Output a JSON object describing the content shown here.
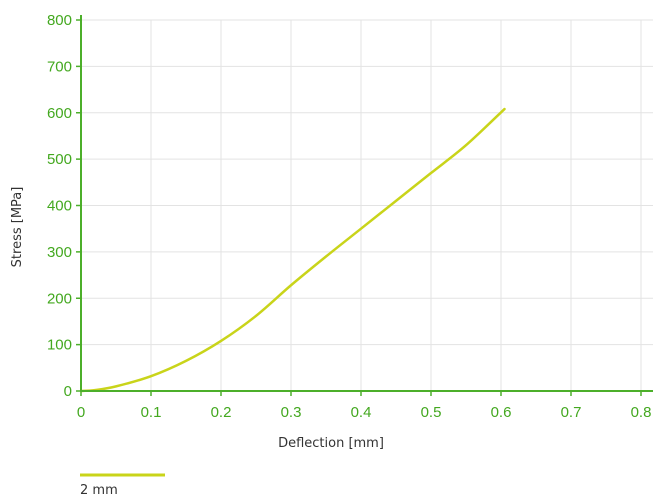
{
  "chart_data": {
    "type": "line",
    "title": "",
    "xlabel": "Deflection [mm]",
    "ylabel": "Stress [MPa]",
    "xlim": [
      0,
      0.8
    ],
    "ylim": [
      0,
      800
    ],
    "x_ticks": [
      "0",
      "0.1",
      "0.2",
      "0.3",
      "0.4",
      "0.5",
      "0.6",
      "0.7",
      "0.8"
    ],
    "y_ticks": [
      "0",
      "100",
      "200",
      "300",
      "400",
      "500",
      "600",
      "700",
      "800"
    ],
    "grid": true,
    "legend_position": "bottom-left",
    "series": [
      {
        "name": "2 mm",
        "color": "#c9d41a",
        "points": [
          [
            0.0,
            0
          ],
          [
            0.02,
            2
          ],
          [
            0.05,
            10
          ],
          [
            0.1,
            32
          ],
          [
            0.15,
            65
          ],
          [
            0.2,
            108
          ],
          [
            0.25,
            162
          ],
          [
            0.3,
            228
          ],
          [
            0.35,
            290
          ],
          [
            0.4,
            350
          ],
          [
            0.45,
            410
          ],
          [
            0.5,
            470
          ],
          [
            0.55,
            530
          ],
          [
            0.605,
            608
          ]
        ]
      }
    ]
  },
  "colors": {
    "axis": "#4caf2a",
    "tick_text": "#43a81f",
    "grid": "#e3e3e3"
  }
}
